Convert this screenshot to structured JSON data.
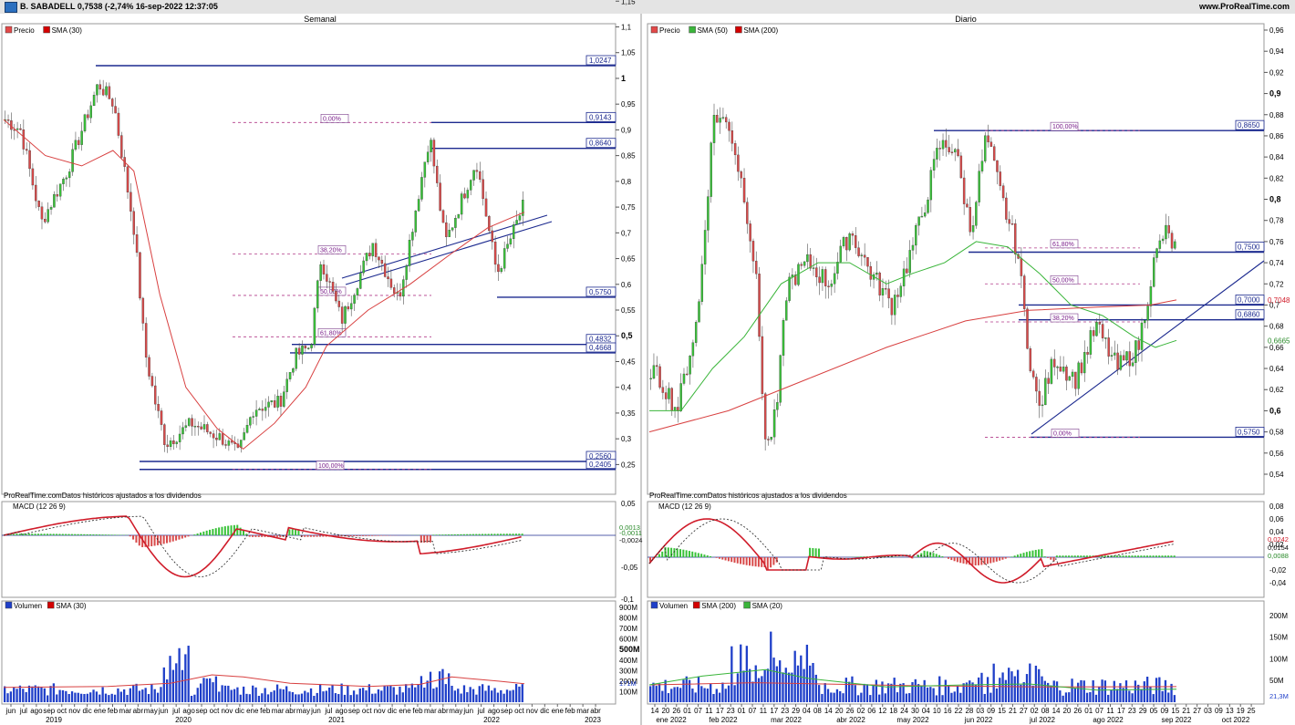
{
  "header": {
    "title": "B. SABADELL 0,7538 (-2,74% 16-sep-2022 12:37:05",
    "site": "www.ProRealTime.com",
    "app_icon": "prorealtime-icon"
  },
  "notice": "ProRealTime.comDatos históricos ajustados a los dividendos",
  "charts": {
    "weekly": {
      "title": "Semanal",
      "legend": [
        {
          "label": "Precio",
          "color": "#e24848"
        },
        {
          "label": "SMA (30)",
          "color": "#d40000"
        }
      ],
      "price_axis": [
        "1,15",
        "1,1",
        "1,05",
        "1",
        "0,95",
        "0,9",
        "0,85",
        "0,8",
        "0,75",
        "0,7",
        "0,65",
        "0,6",
        "0,55",
        "0,5",
        "0,45",
        "0,4",
        "0,35",
        "0,3",
        "0,25"
      ],
      "price_axis_bold": [
        "1",
        "0,5"
      ],
      "levels": [
        "1,0247",
        "0,9143",
        "0,8640",
        "0,5750",
        "0,4832",
        "0,4668",
        "0,2560",
        "0,2405"
      ],
      "fib_labels": [
        "0,00%",
        "38,20%",
        "50,00%",
        "61,80%",
        "100,00%"
      ],
      "macd": {
        "title": "MACD (12 26 9)",
        "axis": [
          "0,05",
          "-0,05",
          "-0,1"
        ],
        "value_tags": [
          "0,0013",
          "-0,0011",
          "-0,0024"
        ]
      },
      "volume": {
        "legend": [
          {
            "label": "Volumen",
            "color": "#1f3fc9"
          },
          {
            "label": "SMA (30)",
            "color": "#d40000"
          }
        ],
        "axis": [
          "900M",
          "800M",
          "700M",
          "600M",
          "500M",
          "400M",
          "300M",
          "200M",
          "100M"
        ],
        "axis_bold": [
          "500M"
        ],
        "tag": "171M"
      },
      "x_ticks": [
        "jun",
        "jul",
        "ago",
        "sep",
        "oct",
        "nov",
        "dic",
        "ene",
        "feb",
        "mar",
        "abr",
        "may",
        "jun",
        "jul",
        "ago",
        "sep",
        "oct",
        "nov",
        "dic",
        "ene",
        "feb",
        "mar",
        "abr",
        "may",
        "jun",
        "jul",
        "ago",
        "sep",
        "oct",
        "nov",
        "dic",
        "ene",
        "feb",
        "mar",
        "abr",
        "may",
        "jun",
        "jul",
        "ago",
        "sep",
        "oct",
        "nov",
        "dic",
        "ene",
        "feb",
        "mar",
        "abr"
      ],
      "x_years": [
        "2019",
        "2020",
        "2021",
        "2022",
        "2023"
      ]
    },
    "daily": {
      "title": "Diario",
      "legend": [
        {
          "label": "Precio",
          "color": "#e24848"
        },
        {
          "label": "SMA (50)",
          "color": "#3ab53a"
        },
        {
          "label": "SMA (200)",
          "color": "#d40000"
        }
      ],
      "price_axis": [
        "0,96",
        "0,94",
        "0,92",
        "0,9",
        "0,88",
        "0,86",
        "0,84",
        "0,82",
        "0,8",
        "0,78",
        "0,76",
        "0,74",
        "0,72",
        "0,7",
        "0,68",
        "0,66",
        "0,64",
        "0,62",
        "0,6",
        "0,58",
        "0,56",
        "0,54"
      ],
      "price_axis_bold": [
        "0,9",
        "0,8",
        "0,6"
      ],
      "levels": [
        "0,8650",
        "0,7500",
        "0,7000",
        "0,6860",
        "0,5750"
      ],
      "sma_tags": [
        "0,7048",
        "0,6665"
      ],
      "fib_labels": [
        "100,00%",
        "61,80%",
        "50,00%",
        "38,20%",
        "0,00%"
      ],
      "macd": {
        "title": "MACD (12 26 9)",
        "axis": [
          "0,08",
          "0,06",
          "0,04",
          "0,02",
          "-0,02",
          "-0,04"
        ],
        "value_tags": [
          "0,0242",
          "0,0154",
          "0,0088"
        ]
      },
      "volume": {
        "legend": [
          {
            "label": "Volumen",
            "color": "#1f3fc9"
          },
          {
            "label": "SMA (200)",
            "color": "#d40000"
          },
          {
            "label": "SMA (20)",
            "color": "#3ab53a"
          }
        ],
        "axis": [
          "200M",
          "150M",
          "100M",
          "50M"
        ],
        "tag": "21,3M"
      },
      "x_ticks": [
        "14",
        "20",
        "26",
        "01",
        "07",
        "11",
        "17",
        "23",
        "01",
        "07",
        "11",
        "17",
        "23",
        "29",
        "04",
        "08",
        "14",
        "20",
        "26",
        "02",
        "06",
        "12",
        "18",
        "24",
        "30",
        "04",
        "10",
        "16",
        "22",
        "28",
        "03",
        "09",
        "15",
        "21",
        "27",
        "02",
        "08",
        "14",
        "20",
        "26",
        "01",
        "07",
        "11",
        "17",
        "23",
        "29",
        "05",
        "09",
        "15",
        "21",
        "27",
        "03",
        "09",
        "13",
        "19",
        "25"
      ],
      "x_months": [
        "ene 2022",
        "feb 2022",
        "mar 2022",
        "abr 2022",
        "may 2022",
        "jun 2022",
        "jul 2022",
        "ago 2022",
        "sep 2022",
        "oct 2022"
      ]
    }
  },
  "chart_data": [
    {
      "type": "candlestick",
      "title": "Semanal",
      "ylim": [
        0.22,
        1.17
      ],
      "series": [
        {
          "name": "Precio",
          "x": [
            "2019-06",
            "2019-09",
            "2019-12",
            "2020-02",
            "2020-04",
            "2020-06",
            "2020-09",
            "2020-11",
            "2021-01",
            "2021-04",
            "2021-06",
            "2021-09",
            "2021-12",
            "2022-02",
            "2022-04",
            "2022-06",
            "2022-08",
            "2022-09"
          ],
          "values": [
            0.93,
            0.78,
            1.0,
            0.8,
            0.42,
            0.31,
            0.29,
            0.27,
            0.38,
            0.47,
            0.68,
            0.6,
            0.55,
            0.88,
            0.7,
            0.85,
            0.64,
            0.75
          ]
        },
        {
          "name": "SMA (30)",
          "x": [
            "2019-06",
            "2019-12",
            "2020-02",
            "2020-06",
            "2020-09",
            "2021-01",
            "2021-04",
            "2021-08",
            "2022-01",
            "2022-05",
            "2022-09"
          ],
          "values": [
            0.92,
            0.86,
            0.8,
            0.48,
            0.31,
            0.33,
            0.42,
            0.55,
            0.61,
            0.72,
            0.73
          ]
        }
      ],
      "levels": [
        1.0247,
        0.9143,
        0.864,
        0.575,
        0.4832,
        0.4668,
        0.256,
        0.2405
      ]
    },
    {
      "type": "candlestick",
      "title": "Diario",
      "ylim": [
        0.535,
        0.965
      ],
      "series": [
        {
          "name": "Precio",
          "x": [
            "2022-01-14",
            "2022-01-26",
            "2022-02-07",
            "2022-02-15",
            "2022-03-01",
            "2022-03-08",
            "2022-03-29",
            "2022-04-20",
            "2022-05-12",
            "2022-05-31",
            "2022-06-07",
            "2022-06-20",
            "2022-07-04",
            "2022-07-18",
            "2022-08-01",
            "2022-08-26",
            "2022-09-09",
            "2022-09-16"
          ],
          "values": [
            0.64,
            0.59,
            0.9,
            0.82,
            0.7,
            0.54,
            0.75,
            0.78,
            0.68,
            0.86,
            0.86,
            0.75,
            0.57,
            0.65,
            0.68,
            0.66,
            0.78,
            0.7538
          ]
        },
        {
          "name": "SMA (50)",
          "x": [
            "2022-01-14",
            "2022-02-15",
            "2022-03-15",
            "2022-04-15",
            "2022-05-15",
            "2022-06-10",
            "2022-07-10",
            "2022-08-10",
            "2022-09-16"
          ],
          "values": [
            0.6,
            0.67,
            0.73,
            0.74,
            0.71,
            0.76,
            0.73,
            0.69,
            0.6665
          ]
        },
        {
          "name": "SMA (200)",
          "x": [
            "2022-01-14",
            "2022-03-01",
            "2022-05-01",
            "2022-07-01",
            "2022-09-16"
          ],
          "values": [
            0.58,
            0.62,
            0.66,
            0.69,
            0.7048
          ]
        }
      ],
      "levels": [
        0.865,
        0.75,
        0.7,
        0.686,
        0.575
      ]
    }
  ]
}
